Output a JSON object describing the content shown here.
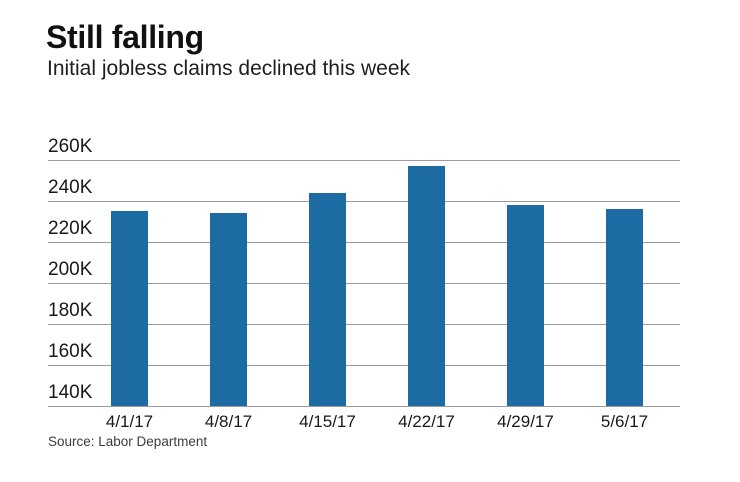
{
  "header": {
    "title": "Still falling",
    "subtitle": "Initial jobless claims declined this week"
  },
  "source": "Source: Labor Department",
  "colors": {
    "bar": "#1c6ba3",
    "gridline": "#9b9b9b",
    "text": "#191919",
    "source_text": "#3d3d3d",
    "background": "#ffffff"
  },
  "chart_data": {
    "type": "bar",
    "title": "Still falling",
    "subtitle": "Initial jobless claims declined this week",
    "categories": [
      "4/1/17",
      "4/8/17",
      "4/15/17",
      "4/22/17",
      "4/29/17",
      "5/6/17"
    ],
    "values": [
      235,
      234,
      244,
      257,
      238,
      236
    ],
    "value_unit": "thousand claims",
    "xlabel": "",
    "ylabel": "",
    "ylim": [
      140,
      260
    ],
    "ytick_interval": 20,
    "ytick_labels_top_to_bottom": [
      "260K",
      "240K",
      "220K",
      "200K",
      "180K",
      "160K",
      "140K"
    ],
    "grid": true,
    "legend": false,
    "bar_color": "#1c6ba3",
    "source": "Source: Labor Department"
  }
}
